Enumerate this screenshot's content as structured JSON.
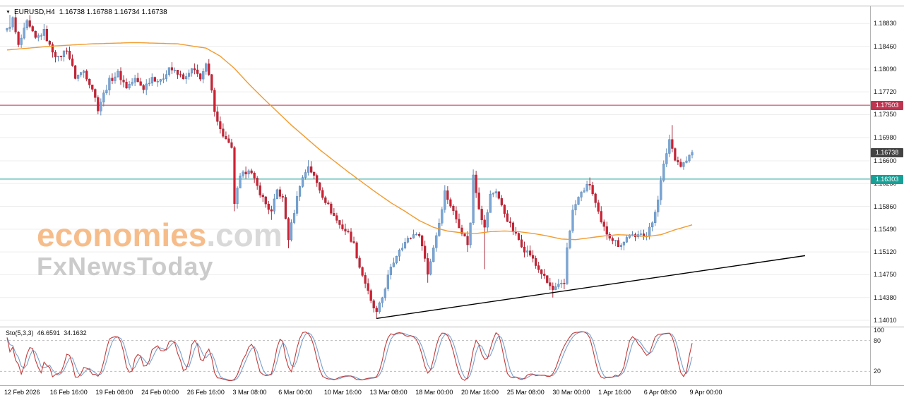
{
  "header": {
    "collapse_icon": "▼",
    "symbol": "EURUSD,H4",
    "ohlc": "1.16738 1.16788 1.16734 1.16738"
  },
  "watermark": {
    "brand": "economies",
    "brand_suffix": ".com",
    "tagline": "FxNewsToday"
  },
  "price_axis": {
    "labels": [
      "1.18830",
      "1.18460",
      "1.18090",
      "1.17720",
      "1.17350",
      "1.16980",
      "1.16600",
      "1.16230",
      "1.15860",
      "1.15490",
      "1.15120",
      "1.14750",
      "1.14380",
      "1.14010"
    ]
  },
  "time_axis": {
    "labels": [
      "12 Feb 2026",
      "16 Feb 16:00",
      "19 Feb 08:00",
      "24 Feb 00:00",
      "26 Feb 16:00",
      "3 Mar 08:00",
      "6 Mar 00:00",
      "10 Mar 16:00",
      "13 Mar 08:00",
      "18 Mar 00:00",
      "20 Mar 16:00",
      "25 Mar 08:00",
      "30 Mar 00:00",
      "1 Apr 16:00",
      "6 Apr 08:00",
      "9 Apr 00:00"
    ]
  },
  "levels": {
    "resistance": {
      "price": 1.17503,
      "label": "1.17503",
      "color": "#bd3550",
      "line": true
    },
    "current": {
      "price": 1.16738,
      "label": "1.16738",
      "color": "#434343",
      "line": false
    },
    "support": {
      "price": 1.16303,
      "label": "1.16303",
      "color": "#18a096",
      "line": true
    }
  },
  "indicator": {
    "name": "Sto(5,3,3)",
    "k_value": "46.6591",
    "d_value": "34.1632",
    "k_color": "#c13b3b",
    "d_color": "#7aa0cc",
    "dashed_levels": [
      80,
      20
    ],
    "axis_labels": [
      {
        "text": "100",
        "value": 100
      },
      {
        "text": "80",
        "value": 80
      },
      {
        "text": "20",
        "value": 20
      }
    ]
  },
  "chart_data": {
    "type": "candlestick",
    "title": "EURUSD H4 candlestick chart with 50-period average, support/resistance and rising trendline",
    "symbol": "EURUSD",
    "timeframe": "H4",
    "num_candles": 242,
    "price_range": {
      "top": 1.1912,
      "bottom": 1.1393
    },
    "bull_color": "#7aa6d6",
    "bull_border": "#4d7cae",
    "bear_color": "#cc2233",
    "bear_border": "#a01628",
    "waypoints": [
      [
        0,
        1.1872
      ],
      [
        2,
        1.189
      ],
      [
        4,
        1.1846
      ],
      [
        7,
        1.1884
      ],
      [
        10,
        1.1858
      ],
      [
        13,
        1.187
      ],
      [
        15,
        1.1846
      ],
      [
        18,
        1.1826
      ],
      [
        21,
        1.1842
      ],
      [
        24,
        1.1796
      ],
      [
        27,
        1.1806
      ],
      [
        30,
        1.1778
      ],
      [
        32,
        1.1745
      ],
      [
        34,
        1.1768
      ],
      [
        36,
        1.179
      ],
      [
        39,
        1.1802
      ],
      [
        42,
        1.178
      ],
      [
        45,
        1.1792
      ],
      [
        48,
        1.1778
      ],
      [
        51,
        1.1796
      ],
      [
        54,
        1.1788
      ],
      [
        57,
        1.1812
      ],
      [
        60,
        1.18
      ],
      [
        63,
        1.1794
      ],
      [
        65,
        1.1808
      ],
      [
        68,
        1.1796
      ],
      [
        70,
        1.1814
      ],
      [
        71,
        1.1798
      ],
      [
        73,
        1.1744
      ],
      [
        75,
        1.171
      ],
      [
        77,
        1.1694
      ],
      [
        79,
        1.1678
      ],
      [
        80,
        1.1592
      ],
      [
        82,
        1.1632
      ],
      [
        85,
        1.1648
      ],
      [
        88,
        1.1618
      ],
      [
        91,
        1.159
      ],
      [
        93,
        1.1576
      ],
      [
        95,
        1.1612
      ],
      [
        97,
        1.1598
      ],
      [
        99,
        1.1534
      ],
      [
        101,
        1.1578
      ],
      [
        103,
        1.1622
      ],
      [
        106,
        1.1652
      ],
      [
        108,
        1.1634
      ],
      [
        111,
        1.1604
      ],
      [
        114,
        1.1578
      ],
      [
        117,
        1.1556
      ],
      [
        120,
        1.1542
      ],
      [
        122,
        1.1524
      ],
      [
        124,
        1.1488
      ],
      [
        126,
        1.1462
      ],
      [
        128,
        1.143
      ],
      [
        130,
        1.1412
      ],
      [
        132,
        1.1438
      ],
      [
        134,
        1.1472
      ],
      [
        136,
        1.1496
      ],
      [
        138,
        1.1518
      ],
      [
        141,
        1.1532
      ],
      [
        144,
        1.1544
      ],
      [
        146,
        1.1526
      ],
      [
        148,
        1.1476
      ],
      [
        150,
        1.152
      ],
      [
        152,
        1.156
      ],
      [
        154,
        1.161
      ],
      [
        156,
        1.1588
      ],
      [
        158,
        1.1566
      ],
      [
        160,
        1.1545
      ],
      [
        162,
        1.1526
      ],
      [
        163,
        1.1558
      ],
      [
        164,
        1.1638
      ],
      [
        166,
        1.1585
      ],
      [
        168,
        1.155
      ],
      [
        170,
        1.1604
      ],
      [
        172,
        1.1612
      ],
      [
        174,
        1.1586
      ],
      [
        176,
        1.1565
      ],
      [
        178,
        1.1546
      ],
      [
        180,
        1.1532
      ],
      [
        182,
        1.1516
      ],
      [
        184,
        1.1508
      ],
      [
        186,
        1.149
      ],
      [
        188,
        1.1478
      ],
      [
        190,
        1.1462
      ],
      [
        192,
        1.145
      ],
      [
        194,
        1.1456
      ],
      [
        196,
        1.146
      ],
      [
        197,
        1.152
      ],
      [
        199,
        1.1578
      ],
      [
        201,
        1.16
      ],
      [
        203,
        1.1614
      ],
      [
        205,
        1.1622
      ],
      [
        207,
        1.159
      ],
      [
        209,
        1.1558
      ],
      [
        211,
        1.1543
      ],
      [
        213,
        1.1533
      ],
      [
        215,
        1.1524
      ],
      [
        217,
        1.1528
      ],
      [
        219,
        1.1542
      ],
      [
        221,
        1.1533
      ],
      [
        223,
        1.1545
      ],
      [
        225,
        1.1538
      ],
      [
        227,
        1.156
      ],
      [
        229,
        1.16
      ],
      [
        231,
        1.1652
      ],
      [
        233,
        1.1695
      ],
      [
        235,
        1.1665
      ],
      [
        237,
        1.1652
      ],
      [
        239,
        1.166
      ],
      [
        241,
        1.16738
      ]
    ],
    "wick_events": [
      {
        "i": 1,
        "high": 1.1897
      },
      {
        "i": 32,
        "low": 1.1738
      },
      {
        "i": 80,
        "low": 1.1578
      },
      {
        "i": 93,
        "low": 1.1564
      },
      {
        "i": 99,
        "low": 1.1518
      },
      {
        "i": 106,
        "high": 1.1661
      },
      {
        "i": 130,
        "low": 1.1404
      },
      {
        "i": 148,
        "low": 1.1462
      },
      {
        "i": 162,
        "low": 1.1512
      },
      {
        "i": 164,
        "high": 1.1646
      },
      {
        "i": 168,
        "low": 1.1484
      },
      {
        "i": 192,
        "low": 1.1438
      },
      {
        "i": 205,
        "high": 1.1633
      },
      {
        "i": 234,
        "high": 1.1718
      }
    ],
    "ma": {
      "color": "#f29b2d",
      "points": [
        [
          0,
          1.184
        ],
        [
          15,
          1.1846
        ],
        [
          30,
          1.185
        ],
        [
          45,
          1.1852
        ],
        [
          60,
          1.185
        ],
        [
          70,
          1.1843
        ],
        [
          75,
          1.183
        ],
        [
          80,
          1.181
        ],
        [
          85,
          1.1785
        ],
        [
          90,
          1.1762
        ],
        [
          95,
          1.174
        ],
        [
          100,
          1.1718
        ],
        [
          105,
          1.1698
        ],
        [
          110,
          1.1678
        ],
        [
          115,
          1.166
        ],
        [
          120,
          1.1642
        ],
        [
          125,
          1.1625
        ],
        [
          130,
          1.1608
        ],
        [
          135,
          1.1592
        ],
        [
          140,
          1.1578
        ],
        [
          145,
          1.1563
        ],
        [
          150,
          1.1552
        ],
        [
          155,
          1.1546
        ],
        [
          160,
          1.1543
        ],
        [
          165,
          1.1542
        ],
        [
          170,
          1.1545
        ],
        [
          175,
          1.1546
        ],
        [
          180,
          1.1545
        ],
        [
          185,
          1.1542
        ],
        [
          190,
          1.1538
        ],
        [
          195,
          1.1533
        ],
        [
          200,
          1.1532
        ],
        [
          205,
          1.1535
        ],
        [
          210,
          1.1538
        ],
        [
          215,
          1.154
        ],
        [
          220,
          1.1539
        ],
        [
          225,
          1.1537
        ],
        [
          230,
          1.154
        ],
        [
          235,
          1.1548
        ],
        [
          241,
          1.1556
        ]
      ]
    },
    "trendline": {
      "x1_frac": 0.4326,
      "price1": 1.1404,
      "x2_frac": 0.9253,
      "price2": 1.1506,
      "color": "#000000"
    },
    "stochastic": {
      "k_period": 5,
      "k_smooth": 3,
      "d_period": 3
    },
    "grid_color": "#ededed"
  }
}
